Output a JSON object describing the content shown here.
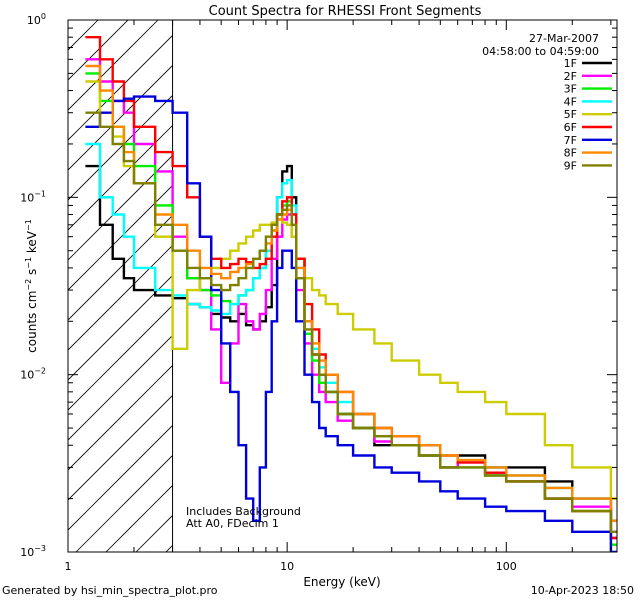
{
  "chart_data": {
    "type": "line",
    "title": "Count Spectra for RHESSI Front Segments",
    "date": "27-Mar-2007",
    "time_range": "04:58:00 to 04:59:00",
    "xlabel": "Energy (keV)",
    "ylabel_parts": {
      "base": "counts cm",
      "exp1": "−2",
      "mid": " s",
      "exp2": "−1",
      "end": " keV",
      "exp3": "−1"
    },
    "xscale": "log",
    "yscale": "log",
    "xlim": [
      1,
      320
    ],
    "ylim": [
      0.001,
      1
    ],
    "x_ticks": [
      {
        "value": 1,
        "label": "1"
      },
      {
        "value": 10,
        "label": "10"
      },
      {
        "value": 100,
        "label": "100"
      }
    ],
    "y_ticks": [
      {
        "value": 1,
        "base": "10",
        "exp": "0"
      },
      {
        "value": 0.1,
        "base": "10",
        "exp": "−1"
      },
      {
        "value": 0.01,
        "base": "10",
        "exp": "−2"
      },
      {
        "value": 0.001,
        "base": "10",
        "exp": "−3"
      }
    ],
    "hatched_region_xmax": 3,
    "annotations": [
      "Includes Background",
      "Att A0, FDecim 1"
    ],
    "legend_position": "top-right",
    "series": [
      {
        "name": "1F",
        "color": "#000000",
        "x": [
          1.2,
          1.4,
          1.6,
          1.8,
          2.0,
          2.5,
          3.0,
          3.5,
          4.0,
          4.5,
          5.0,
          5.5,
          6.0,
          6.5,
          7.0,
          7.5,
          8.0,
          8.5,
          9.0,
          9.5,
          10.0,
          10.5,
          11.0,
          12.0,
          13.0,
          14.0,
          15.0,
          17.0,
          20.0,
          25.0,
          30.0,
          40.0,
          50.0,
          60.0,
          80.0,
          100.0,
          150.0,
          200.0,
          300.0
        ],
        "values": [
          0.15,
          0.07,
          0.045,
          0.035,
          0.03,
          0.028,
          0.027,
          0.025,
          0.024,
          0.022,
          0.021,
          0.02,
          0.022,
          0.019,
          0.018,
          0.02,
          0.024,
          0.032,
          0.1,
          0.14,
          0.15,
          0.1,
          0.045,
          0.02,
          0.013,
          0.01,
          0.008,
          0.006,
          0.005,
          0.004,
          0.004,
          0.0035,
          0.003,
          0.0035,
          0.003,
          0.003,
          0.0025,
          0.002,
          0.0015
        ]
      },
      {
        "name": "2F",
        "color": "#ff00ff",
        "x": [
          1.2,
          1.4,
          1.6,
          1.8,
          2.0,
          2.5,
          3.0,
          3.5,
          4.0,
          4.5,
          5.0,
          5.5,
          6.0,
          6.5,
          7.0,
          7.5,
          8.0,
          8.5,
          9.0,
          9.5,
          10.0,
          10.5,
          11.0,
          12.0,
          13.0,
          14.0,
          15.0,
          17.0,
          20.0,
          25.0,
          30.0,
          40.0,
          50.0,
          60.0,
          80.0,
          100.0,
          150.0,
          200.0,
          300.0
        ],
        "values": [
          0.6,
          0.45,
          0.35,
          0.3,
          0.2,
          0.14,
          0.06,
          0.035,
          0.03,
          0.018,
          0.009,
          0.015,
          0.025,
          0.02,
          0.018,
          0.022,
          0.03,
          0.045,
          0.06,
          0.075,
          0.08,
          0.06,
          0.03,
          0.015,
          0.01,
          0.008,
          0.007,
          0.0055,
          0.005,
          0.0042,
          0.004,
          0.0035,
          0.003,
          0.0032,
          0.0028,
          0.0025,
          0.002,
          0.0018,
          0.0012
        ]
      },
      {
        "name": "3F",
        "color": "#00ee00",
        "x": [
          1.2,
          1.4,
          1.6,
          1.8,
          2.0,
          2.5,
          3.0,
          3.5,
          4.0,
          4.5,
          5.0,
          5.5,
          6.0,
          6.5,
          7.0,
          7.5,
          8.0,
          8.5,
          9.0,
          9.5,
          10.0,
          10.5,
          11.0,
          12.0,
          13.0,
          14.0,
          15.0,
          17.0,
          20.0,
          25.0,
          30.0,
          40.0,
          50.0,
          60.0,
          80.0,
          100.0,
          150.0,
          200.0,
          300.0
        ],
        "values": [
          0.5,
          0.35,
          0.25,
          0.2,
          0.15,
          0.09,
          0.05,
          0.035,
          0.03,
          0.028,
          0.026,
          0.025,
          0.028,
          0.03,
          0.035,
          0.04,
          0.05,
          0.065,
          0.08,
          0.09,
          0.095,
          0.07,
          0.035,
          0.017,
          0.012,
          0.009,
          0.008,
          0.006,
          0.005,
          0.0045,
          0.004,
          0.0035,
          0.003,
          0.003,
          0.0027,
          0.0025,
          0.002,
          0.0017,
          0.0011
        ]
      },
      {
        "name": "4F",
        "color": "#00ffff",
        "x": [
          1.2,
          1.4,
          1.6,
          1.8,
          2.0,
          2.5,
          3.0,
          3.5,
          4.0,
          4.5,
          5.0,
          5.5,
          6.0,
          6.5,
          7.0,
          7.5,
          8.0,
          8.5,
          9.0,
          9.5,
          10.0,
          10.5,
          11.0,
          12.0,
          13.0,
          14.0,
          15.0,
          17.0,
          20.0,
          25.0,
          30.0,
          40.0,
          50.0,
          60.0,
          80.0,
          100.0,
          150.0,
          200.0,
          300.0
        ],
        "values": [
          0.2,
          0.1,
          0.08,
          0.06,
          0.04,
          0.03,
          0.028,
          0.025,
          0.024,
          0.023,
          0.022,
          0.025,
          0.028,
          0.03,
          0.035,
          0.04,
          0.05,
          0.07,
          0.1,
          0.12,
          0.125,
          0.09,
          0.04,
          0.02,
          0.014,
          0.011,
          0.009,
          0.007,
          0.006,
          0.005,
          0.0045,
          0.004,
          0.0035,
          0.0033,
          0.003,
          0.0027,
          0.0023,
          0.002,
          0.0013
        ]
      },
      {
        "name": "5F",
        "color": "#cccc00",
        "x": [
          1.2,
          1.4,
          1.6,
          1.8,
          2.0,
          2.5,
          3.0,
          3.5,
          4.0,
          4.5,
          5.0,
          5.5,
          6.0,
          6.5,
          7.0,
          7.5,
          8.0,
          8.5,
          9.0,
          9.5,
          10.0,
          10.5,
          11.0,
          12.0,
          13.0,
          14.0,
          15.0,
          17.0,
          20.0,
          25.0,
          30.0,
          40.0,
          50.0,
          60.0,
          80.0,
          100.0,
          150.0,
          200.0,
          300.0
        ],
        "values": [
          0.45,
          0.3,
          0.22,
          0.15,
          0.12,
          0.06,
          0.014,
          0.03,
          0.035,
          0.04,
          0.045,
          0.05,
          0.055,
          0.06,
          0.065,
          0.07,
          0.07,
          0.072,
          0.075,
          0.072,
          0.07,
          0.06,
          0.045,
          0.035,
          0.03,
          0.028,
          0.025,
          0.022,
          0.018,
          0.015,
          0.012,
          0.01,
          0.009,
          0.008,
          0.007,
          0.006,
          0.004,
          0.003,
          0.002
        ]
      },
      {
        "name": "6F",
        "color": "#ff0000",
        "x": [
          1.2,
          1.4,
          1.6,
          1.8,
          2.0,
          2.5,
          3.0,
          3.5,
          4.0,
          4.5,
          5.0,
          5.5,
          6.0,
          6.5,
          7.0,
          7.5,
          8.0,
          8.5,
          9.0,
          9.5,
          10.0,
          10.5,
          11.0,
          12.0,
          13.0,
          14.0,
          15.0,
          17.0,
          20.0,
          25.0,
          30.0,
          40.0,
          50.0,
          60.0,
          80.0,
          100.0,
          150.0,
          200.0,
          300.0
        ],
        "values": [
          0.8,
          0.6,
          0.45,
          0.35,
          0.25,
          0.18,
          0.15,
          0.1,
          0.06,
          0.045,
          0.04,
          0.042,
          0.045,
          0.043,
          0.04,
          0.042,
          0.045,
          0.06,
          0.08,
          0.095,
          0.1,
          0.08,
          0.045,
          0.025,
          0.018,
          0.013,
          0.01,
          0.008,
          0.006,
          0.005,
          0.0045,
          0.004,
          0.0035,
          0.0032,
          0.0028,
          0.0025,
          0.002,
          0.0017,
          0.0012
        ]
      },
      {
        "name": "7F",
        "color": "#0000dd",
        "x": [
          1.2,
          1.4,
          1.6,
          1.8,
          2.0,
          2.5,
          3.0,
          3.5,
          4.0,
          4.5,
          5.0,
          5.5,
          6.0,
          6.5,
          7.0,
          7.5,
          8.0,
          8.5,
          9.0,
          9.5,
          10.0,
          10.5,
          11.0,
          12.0,
          13.0,
          14.0,
          15.0,
          17.0,
          20.0,
          25.0,
          30.0,
          40.0,
          50.0,
          60.0,
          80.0,
          100.0,
          150.0,
          200.0,
          300.0
        ],
        "values": [
          0.25,
          0.3,
          0.35,
          0.36,
          0.37,
          0.35,
          0.3,
          0.12,
          0.06,
          0.03,
          0.015,
          0.008,
          0.004,
          0.002,
          0.0015,
          0.003,
          0.008,
          0.02,
          0.04,
          0.05,
          0.05,
          0.04,
          0.02,
          0.01,
          0.007,
          0.005,
          0.0045,
          0.004,
          0.0035,
          0.003,
          0.0028,
          0.0025,
          0.0022,
          0.002,
          0.0018,
          0.0017,
          0.0015,
          0.0013,
          0.001
        ]
      },
      {
        "name": "8F",
        "color": "#ff8800",
        "x": [
          1.2,
          1.4,
          1.6,
          1.8,
          2.0,
          2.5,
          3.0,
          3.5,
          4.0,
          4.5,
          5.0,
          5.5,
          6.0,
          6.5,
          7.0,
          7.5,
          8.0,
          8.5,
          9.0,
          9.5,
          10.0,
          10.5,
          11.0,
          12.0,
          13.0,
          14.0,
          15.0,
          17.0,
          20.0,
          25.0,
          30.0,
          40.0,
          50.0,
          60.0,
          80.0,
          100.0,
          150.0,
          200.0,
          300.0
        ],
        "values": [
          0.55,
          0.4,
          0.25,
          0.18,
          0.12,
          0.08,
          0.07,
          0.05,
          0.04,
          0.037,
          0.035,
          0.038,
          0.04,
          0.042,
          0.045,
          0.05,
          0.055,
          0.065,
          0.075,
          0.08,
          0.085,
          0.07,
          0.04,
          0.02,
          0.015,
          0.012,
          0.01,
          0.008,
          0.006,
          0.005,
          0.0045,
          0.004,
          0.0035,
          0.0033,
          0.003,
          0.0027,
          0.0023,
          0.002,
          0.0015
        ]
      },
      {
        "name": "9F",
        "color": "#808000",
        "x": [
          1.2,
          1.4,
          1.6,
          1.8,
          2.0,
          2.5,
          3.0,
          3.5,
          4.0,
          4.5,
          5.0,
          5.5,
          6.0,
          6.5,
          7.0,
          7.5,
          8.0,
          8.5,
          9.0,
          9.5,
          10.0,
          10.5,
          11.0,
          12.0,
          13.0,
          14.0,
          15.0,
          17.0,
          20.0,
          25.0,
          30.0,
          40.0,
          50.0,
          60.0,
          80.0,
          100.0,
          150.0,
          200.0,
          300.0
        ],
        "values": [
          0.3,
          0.25,
          0.2,
          0.16,
          0.12,
          0.07,
          0.05,
          0.04,
          0.035,
          0.032,
          0.03,
          0.032,
          0.035,
          0.04,
          0.045,
          0.05,
          0.06,
          0.07,
          0.08,
          0.085,
          0.09,
          0.07,
          0.035,
          0.018,
          0.013,
          0.01,
          0.008,
          0.006,
          0.005,
          0.0045,
          0.004,
          0.0035,
          0.003,
          0.003,
          0.0027,
          0.0025,
          0.002,
          0.0017,
          0.0013
        ]
      }
    ]
  },
  "footer": {
    "generated_by": "Generated by hsi_min_spectra_plot.pro",
    "timestamp": "10-Apr-2023 18:50"
  }
}
